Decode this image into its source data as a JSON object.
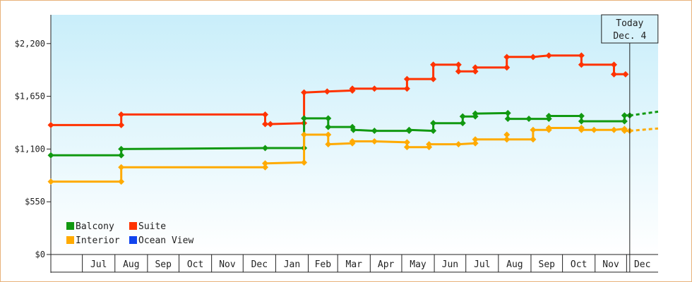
{
  "chart_data": {
    "type": "line",
    "title": "",
    "xlabel": "",
    "ylabel": "",
    "ylim": [
      0,
      2500
    ],
    "xlim": [
      "2024-06-01",
      "2025-12-31"
    ],
    "y_ticks": [
      {
        "value": 0,
        "label": "$0"
      },
      {
        "value": 550,
        "label": "$550"
      },
      {
        "value": 1100,
        "label": "$1,100"
      },
      {
        "value": 1650,
        "label": "$1,650"
      },
      {
        "value": 2200,
        "label": "$2,200"
      }
    ],
    "month_ticks": [
      {
        "label": "Jul",
        "start": "2024-07-01",
        "end": "2024-08-01"
      },
      {
        "label": "Aug",
        "start": "2024-08-01",
        "end": "2024-09-01"
      },
      {
        "label": "Sep",
        "start": "2024-09-01",
        "end": "2024-10-01"
      },
      {
        "label": "Oct",
        "start": "2024-10-01",
        "end": "2024-11-01"
      },
      {
        "label": "Nov",
        "start": "2024-11-01",
        "end": "2024-12-01"
      },
      {
        "label": "Dec",
        "start": "2024-12-01",
        "end": "2025-01-01"
      },
      {
        "label": "Jan",
        "start": "2025-01-01",
        "end": "2025-02-01"
      },
      {
        "label": "Feb",
        "start": "2025-02-01",
        "end": "2025-03-01"
      },
      {
        "label": "Mar",
        "start": "2025-03-01",
        "end": "2025-04-01"
      },
      {
        "label": "Apr",
        "start": "2025-04-01",
        "end": "2025-05-01"
      },
      {
        "label": "May",
        "start": "2025-05-01",
        "end": "2025-06-01"
      },
      {
        "label": "Jun",
        "start": "2025-06-01",
        "end": "2025-07-01"
      },
      {
        "label": "Jul",
        "start": "2025-07-01",
        "end": "2025-08-01"
      },
      {
        "label": "Aug",
        "start": "2025-08-01",
        "end": "2025-09-01"
      },
      {
        "label": "Sep",
        "start": "2025-09-01",
        "end": "2025-10-01"
      },
      {
        "label": "Oct",
        "start": "2025-10-01",
        "end": "2025-11-01"
      },
      {
        "label": "Nov",
        "start": "2025-11-01",
        "end": "2025-12-01"
      },
      {
        "label": "Dec",
        "start": "2025-12-01",
        "end": "2025-12-31"
      }
    ],
    "today": {
      "line1": "Today",
      "line2": "Dec. 4",
      "date": "2025-12-04"
    },
    "legend_position": "bottom-left",
    "series": [
      {
        "name": "Suite",
        "color": "#ff3300",
        "points": [
          [
            "2024-06-01",
            1350
          ],
          [
            "2024-08-07",
            1350
          ],
          [
            "2024-08-07",
            1460
          ],
          [
            "2024-12-22",
            1460
          ],
          [
            "2024-12-22",
            1360
          ],
          [
            "2024-12-27",
            1360
          ],
          [
            "2025-01-28",
            1370
          ],
          [
            "2025-01-28",
            1690
          ],
          [
            "2025-02-19",
            1700
          ],
          [
            "2025-03-15",
            1710
          ],
          [
            "2025-03-15",
            1730
          ],
          [
            "2025-04-05",
            1730
          ],
          [
            "2025-05-06",
            1730
          ],
          [
            "2025-05-06",
            1830
          ],
          [
            "2025-05-31",
            1830
          ],
          [
            "2025-05-31",
            1980
          ],
          [
            "2025-06-24",
            1980
          ],
          [
            "2025-06-24",
            1910
          ],
          [
            "2025-07-10",
            1910
          ],
          [
            "2025-07-10",
            1950
          ],
          [
            "2025-08-09",
            1950
          ],
          [
            "2025-08-09",
            2060
          ],
          [
            "2025-09-03",
            2060
          ],
          [
            "2025-09-18",
            2075
          ],
          [
            "2025-10-19",
            2075
          ],
          [
            "2025-10-19",
            1980
          ],
          [
            "2025-11-19",
            1980
          ],
          [
            "2025-11-19",
            1880
          ],
          [
            "2025-11-30",
            1880
          ]
        ]
      },
      {
        "name": "Balcony",
        "color": "#119911",
        "points": [
          [
            "2024-06-01",
            1035
          ],
          [
            "2024-08-07",
            1035
          ],
          [
            "2024-08-07",
            1100
          ],
          [
            "2024-12-22",
            1110
          ],
          [
            "2025-01-28",
            1110
          ],
          [
            "2025-01-28",
            1420
          ],
          [
            "2025-02-20",
            1420
          ],
          [
            "2025-02-20",
            1330
          ],
          [
            "2025-03-15",
            1330
          ],
          [
            "2025-03-16",
            1300
          ],
          [
            "2025-04-05",
            1290
          ],
          [
            "2025-05-08",
            1290
          ],
          [
            "2025-05-08",
            1300
          ],
          [
            "2025-05-31",
            1290
          ],
          [
            "2025-05-31",
            1370
          ],
          [
            "2025-06-28",
            1370
          ],
          [
            "2025-06-28",
            1440
          ],
          [
            "2025-07-10",
            1440
          ],
          [
            "2025-07-10",
            1470
          ],
          [
            "2025-08-10",
            1475
          ],
          [
            "2025-08-10",
            1415
          ],
          [
            "2025-08-30",
            1415
          ],
          [
            "2025-09-18",
            1415
          ],
          [
            "2025-09-18",
            1445
          ],
          [
            "2025-10-19",
            1445
          ],
          [
            "2025-10-19",
            1390
          ],
          [
            "2025-11-29",
            1390
          ],
          [
            "2025-11-29",
            1450
          ],
          [
            "2025-12-04",
            1450
          ]
        ]
      },
      {
        "name": "Interior",
        "color": "#ffaa00",
        "points": [
          [
            "2024-06-01",
            760
          ],
          [
            "2024-08-07",
            760
          ],
          [
            "2024-08-07",
            910
          ],
          [
            "2024-12-22",
            910
          ],
          [
            "2024-12-22",
            950
          ],
          [
            "2025-01-28",
            960
          ],
          [
            "2025-01-28",
            1250
          ],
          [
            "2025-02-20",
            1250
          ],
          [
            "2025-02-20",
            1150
          ],
          [
            "2025-03-15",
            1160
          ],
          [
            "2025-03-15",
            1180
          ],
          [
            "2025-04-05",
            1180
          ],
          [
            "2025-05-06",
            1170
          ],
          [
            "2025-05-06",
            1120
          ],
          [
            "2025-05-27",
            1120
          ],
          [
            "2025-05-27",
            1150
          ],
          [
            "2025-06-24",
            1150
          ],
          [
            "2025-07-10",
            1160
          ],
          [
            "2025-07-10",
            1200
          ],
          [
            "2025-08-09",
            1200
          ],
          [
            "2025-08-09",
            1250
          ],
          [
            "2025-08-09",
            1200
          ],
          [
            "2025-09-03",
            1200
          ],
          [
            "2025-09-03",
            1300
          ],
          [
            "2025-09-18",
            1300
          ],
          [
            "2025-09-18",
            1320
          ],
          [
            "2025-10-19",
            1320
          ],
          [
            "2025-10-19",
            1300
          ],
          [
            "2025-10-31",
            1300
          ],
          [
            "2025-11-19",
            1300
          ],
          [
            "2025-11-29",
            1310
          ],
          [
            "2025-11-29",
            1290
          ],
          [
            "2025-12-04",
            1290
          ]
        ]
      },
      {
        "name": "Ocean View",
        "color": "#1144ee",
        "points": []
      }
    ],
    "projections": [
      {
        "name": "Balcony",
        "color": "#119911",
        "points": [
          [
            "2025-12-04",
            1450
          ],
          [
            "2025-12-31",
            1490
          ]
        ]
      },
      {
        "name": "Interior",
        "color": "#ffaa00",
        "points": [
          [
            "2025-12-04",
            1290
          ],
          [
            "2025-12-31",
            1315
          ]
        ]
      }
    ],
    "legend": [
      {
        "name": "Balcony",
        "color": "#119911"
      },
      {
        "name": "Suite",
        "color": "#ff3300"
      },
      {
        "name": "Interior",
        "color": "#ffaa00"
      },
      {
        "name": "Ocean View",
        "color": "#1144ee"
      }
    ]
  }
}
